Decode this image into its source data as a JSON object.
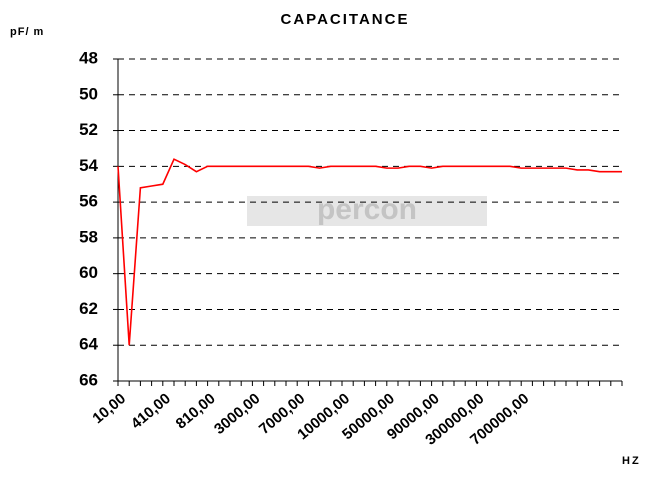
{
  "chart_data": {
    "type": "line",
    "title": "CAPACITANCE",
    "y_label": "pF/ m",
    "x_label": "HZ",
    "watermark": "percon",
    "categories": [
      "10,00",
      null,
      null,
      null,
      "410,00",
      null,
      null,
      null,
      "810,00",
      null,
      null,
      null,
      "3000,00",
      null,
      null,
      null,
      "7000,00",
      null,
      null,
      null,
      "10000,00",
      null,
      null,
      null,
      "50000,00",
      null,
      null,
      null,
      "90000,00",
      null,
      null,
      null,
      "300000,00",
      null,
      null,
      null,
      "700000,00",
      null,
      null,
      null,
      null,
      null,
      null,
      null,
      null,
      null
    ],
    "series": [
      {
        "name": "Capacitance",
        "color": "#ff0000",
        "values": [
          54,
          64,
          55.2,
          55.1,
          55.0,
          53.6,
          53.9,
          54.3,
          54.0,
          54,
          54,
          54,
          54,
          54,
          54,
          54,
          54,
          54,
          54.1,
          54,
          54,
          54,
          54,
          54,
          54.1,
          54.1,
          54,
          54,
          54.1,
          54,
          54,
          54,
          54,
          54,
          54,
          54,
          54.1,
          54.1,
          54.1,
          54.1,
          54.1,
          54.2,
          54.2,
          54.3,
          54.3,
          54.3
        ]
      }
    ],
    "ylim": [
      66,
      48
    ],
    "yticks": [
      48,
      50,
      52,
      54,
      56,
      58,
      60,
      62,
      64,
      66
    ],
    "grid": true
  }
}
